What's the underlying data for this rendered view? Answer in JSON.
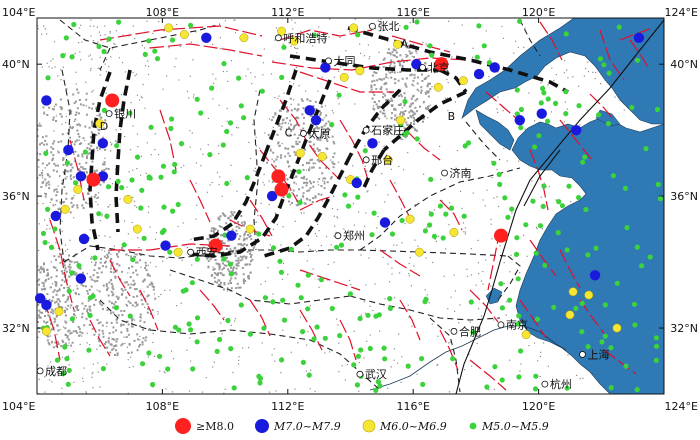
{
  "axes": {
    "lon_ticks": [
      "104°E",
      "108°E",
      "112°E",
      "116°E",
      "120°E",
      "124°E"
    ],
    "lat_ticks": [
      "40°N",
      "36°N",
      "32°N"
    ],
    "lon_range": [
      104,
      124
    ],
    "lat_range": [
      30,
      41.4
    ]
  },
  "cities": [
    {
      "name": "张北",
      "lon": 114.7,
      "lat": 41.15
    },
    {
      "name": "呼和浩特",
      "lon": 111.7,
      "lat": 40.8
    },
    {
      "name": "大同",
      "lon": 113.3,
      "lat": 40.1
    },
    {
      "name": "北京",
      "lon": 116.3,
      "lat": 39.9
    },
    {
      "name": "银川",
      "lon": 106.3,
      "lat": 38.5
    },
    {
      "name": "太原",
      "lon": 112.5,
      "lat": 37.9
    },
    {
      "name": "石家庄",
      "lon": 114.5,
      "lat": 38.0
    },
    {
      "name": "邢台",
      "lon": 114.5,
      "lat": 37.1
    },
    {
      "name": "济南",
      "lon": 117.0,
      "lat": 36.7
    },
    {
      "name": "郑州",
      "lon": 113.6,
      "lat": 34.8
    },
    {
      "name": "西安",
      "lon": 108.9,
      "lat": 34.3
    },
    {
      "name": "合肥",
      "lon": 117.3,
      "lat": 31.9
    },
    {
      "name": "南京",
      "lon": 118.8,
      "lat": 32.1
    },
    {
      "name": "上海",
      "lon": 121.4,
      "lat": 31.2
    },
    {
      "name": "成都",
      "lon": 104.1,
      "lat": 30.7
    },
    {
      "name": "武汉",
      "lon": 114.3,
      "lat": 30.6
    },
    {
      "name": "杭州",
      "lon": 120.2,
      "lat": 30.3
    }
  ],
  "zone_labels": [
    {
      "name": "A",
      "lon": 115.6,
      "lat": 40.5
    },
    {
      "name": "B",
      "lon": 117.1,
      "lat": 38.3
    },
    {
      "name": "C",
      "lon": 111.9,
      "lat": 37.8
    },
    {
      "name": "D",
      "lon": 106.0,
      "lat": 38.0
    }
  ],
  "legend": {
    "items": [
      {
        "label": "≥M8.0",
        "color": "#ff2020",
        "size": "large"
      },
      {
        "label": "M7.0~M7.9",
        "color": "#1a1adf",
        "size": "medium"
      },
      {
        "label": "M6.0~M6.9",
        "color": "#f5e634",
        "size": "small"
      },
      {
        "label": "M5.0~M5.9",
        "color": "#3cd23c",
        "size": "tiny"
      }
    ]
  },
  "colors": {
    "sea": "#2f79b5",
    "fault": "#e0102a",
    "block_boundary": "#111111",
    "province_boundary": "#222222"
  },
  "earthquakes": {
    "m8": [
      {
        "lon": 116.9,
        "lat": 40.0
      },
      {
        "lon": 106.4,
        "lat": 38.9
      },
      {
        "lon": 105.8,
        "lat": 36.5
      },
      {
        "lon": 111.7,
        "lat": 36.6
      },
      {
        "lon": 111.8,
        "lat": 36.2
      },
      {
        "lon": 109.7,
        "lat": 34.5
      },
      {
        "lon": 118.8,
        "lat": 34.8
      }
    ],
    "m7": [
      {
        "lon": 104.3,
        "lat": 38.9
      },
      {
        "lon": 109.4,
        "lat": 40.8
      },
      {
        "lon": 113.2,
        "lat": 39.9
      },
      {
        "lon": 116.1,
        "lat": 40.0
      },
      {
        "lon": 118.1,
        "lat": 39.7
      },
      {
        "lon": 118.6,
        "lat": 39.9
      },
      {
        "lon": 119.4,
        "lat": 38.3
      },
      {
        "lon": 120.1,
        "lat": 38.5
      },
      {
        "lon": 121.2,
        "lat": 38.0
      },
      {
        "lon": 123.2,
        "lat": 40.8
      },
      {
        "lon": 112.7,
        "lat": 38.6
      },
      {
        "lon": 112.9,
        "lat": 38.3
      },
      {
        "lon": 105.0,
        "lat": 37.4
      },
      {
        "lon": 106.1,
        "lat": 37.6
      },
      {
        "lon": 105.4,
        "lat": 36.6
      },
      {
        "lon": 106.1,
        "lat": 36.6
      },
      {
        "lon": 104.6,
        "lat": 35.4
      },
      {
        "lon": 105.5,
        "lat": 34.7
      },
      {
        "lon": 105.4,
        "lat": 33.5
      },
      {
        "lon": 108.1,
        "lat": 34.5
      },
      {
        "lon": 110.2,
        "lat": 34.8
      },
      {
        "lon": 111.5,
        "lat": 36.0
      },
      {
        "lon": 114.7,
        "lat": 37.6
      },
      {
        "lon": 114.2,
        "lat": 36.4
      },
      {
        "lon": 115.1,
        "lat": 35.2
      },
      {
        "lon": 121.8,
        "lat": 33.6
      },
      {
        "lon": 104.3,
        "lat": 32.7
      },
      {
        "lon": 104.1,
        "lat": 32.9
      }
    ],
    "m6": [
      {
        "lon": 108.2,
        "lat": 41.1
      },
      {
        "lon": 108.7,
        "lat": 40.9
      },
      {
        "lon": 110.6,
        "lat": 40.8
      },
      {
        "lon": 111.8,
        "lat": 41.0
      },
      {
        "lon": 112.2,
        "lat": 40.7
      },
      {
        "lon": 114.1,
        "lat": 41.1
      },
      {
        "lon": 115.5,
        "lat": 40.6
      },
      {
        "lon": 113.8,
        "lat": 39.6
      },
      {
        "lon": 114.3,
        "lat": 39.8
      },
      {
        "lon": 116.8,
        "lat": 39.3
      },
      {
        "lon": 117.6,
        "lat": 39.5
      },
      {
        "lon": 115.6,
        "lat": 38.3
      },
      {
        "lon": 112.4,
        "lat": 37.3
      },
      {
        "lon": 113.1,
        "lat": 37.2
      },
      {
        "lon": 115.2,
        "lat": 37.1
      },
      {
        "lon": 114.0,
        "lat": 36.5
      },
      {
        "lon": 106.0,
        "lat": 38.2
      },
      {
        "lon": 105.3,
        "lat": 36.2
      },
      {
        "lon": 106.9,
        "lat": 35.9
      },
      {
        "lon": 104.9,
        "lat": 35.6
      },
      {
        "lon": 107.2,
        "lat": 35.0
      },
      {
        "lon": 108.5,
        "lat": 34.3
      },
      {
        "lon": 110.8,
        "lat": 35.0
      },
      {
        "lon": 115.9,
        "lat": 35.3
      },
      {
        "lon": 116.2,
        "lat": 34.3
      },
      {
        "lon": 117.3,
        "lat": 34.9
      },
      {
        "lon": 121.1,
        "lat": 33.1
      },
      {
        "lon": 121.6,
        "lat": 33.0
      },
      {
        "lon": 121.0,
        "lat": 32.4
      },
      {
        "lon": 122.5,
        "lat": 32.0
      },
      {
        "lon": 119.6,
        "lat": 31.8
      },
      {
        "lon": 104.7,
        "lat": 32.5
      },
      {
        "lon": 104.3,
        "lat": 31.9
      }
    ]
  }
}
